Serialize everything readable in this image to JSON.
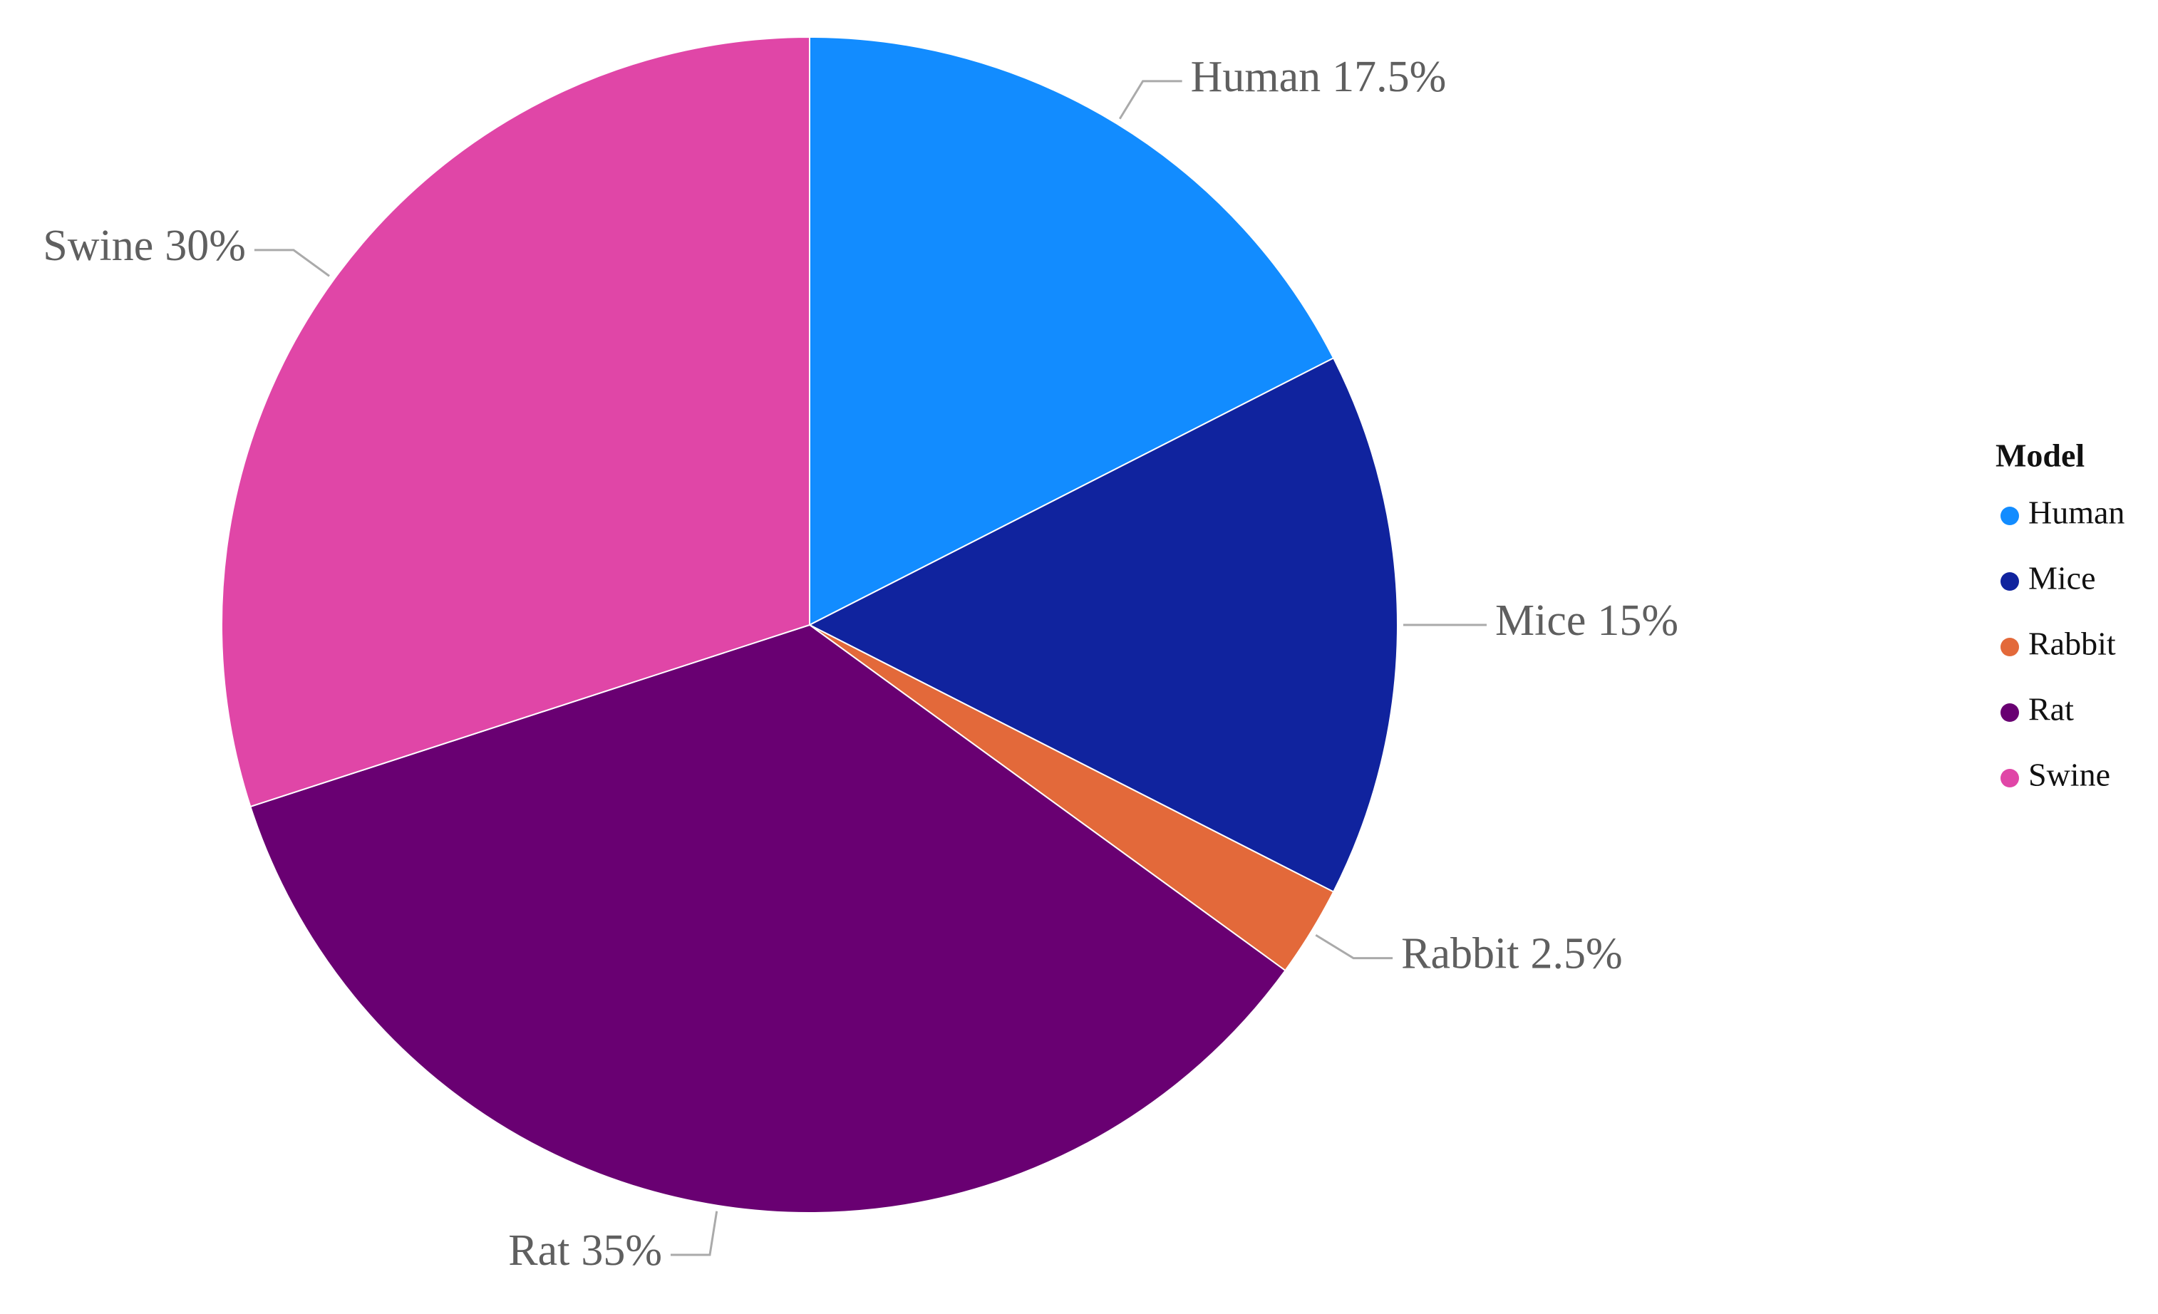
{
  "chart_data": {
    "type": "pie",
    "categories": [
      "Human",
      "Mice",
      "Rabbit",
      "Rat",
      "Swine"
    ],
    "values": [
      17.5,
      15,
      2.5,
      35,
      30
    ],
    "value_labels": [
      "17.5%",
      "15%",
      "2.5%",
      "35%",
      "30%"
    ],
    "colors": [
      "#128cff",
      "#10239e",
      "#e3693a",
      "#690072",
      "#e046a7"
    ],
    "legend_title": "Model",
    "legend": "right"
  }
}
